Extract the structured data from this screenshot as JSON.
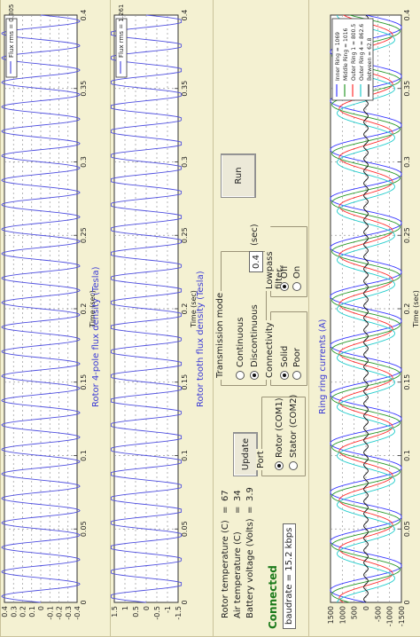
{
  "charts": {
    "rotor4pole": {
      "title": "Rotor 4-pole flux density (Tesla)",
      "legend": "Flux rms = 0.305",
      "xticks": [
        "0.4",
        "0.3",
        "0.2",
        "0.1",
        "0",
        "-0.1",
        "-0.2",
        "-0.3",
        "-0.4"
      ]
    },
    "rotortooth": {
      "title": "Rotor tooth flux density (Tesla)",
      "legend": "Flux rms = 1.261",
      "xticks": [
        "1.5",
        "1",
        "0.5",
        "0",
        "-0.5",
        "-1",
        "-1.5"
      ]
    },
    "ring": {
      "title": "Ring ring currents (A)",
      "xticks": [
        "1500",
        "1000",
        "500",
        "0",
        "-500",
        "-1000",
        "-1500"
      ]
    },
    "time_axis": {
      "label": "Time (sec)",
      "ticks": [
        "0",
        "0.05",
        "0.1",
        "0.15",
        "0.2",
        "0.25",
        "0.3",
        "0.35",
        "0.4"
      ]
    }
  },
  "chart_data": [
    {
      "type": "line",
      "title": "Rotor 4-pole flux density (Tesla)",
      "xlabel": "Time (sec)",
      "xlim": [
        0,
        0.4
      ],
      "ylim": [
        -0.4,
        0.4
      ],
      "series": [
        {
          "name": "Flux rms = 0.305",
          "color": "#5050e0",
          "amplitude": 0.43,
          "frequency_hz": 60
        }
      ]
    },
    {
      "type": "line",
      "title": "Rotor tooth flux density (Tesla)",
      "xlabel": "Time (sec)",
      "xlim": [
        0,
        0.4
      ],
      "ylim": [
        -1.5,
        1.5
      ],
      "series": [
        {
          "name": "Flux rms = 1.261",
          "color": "#5050e0",
          "amplitude": 1.78,
          "frequency_hz": 60
        }
      ]
    },
    {
      "type": "line",
      "title": "Ring ring currents (A)",
      "xlabel": "Time (sec)",
      "xlim": [
        0,
        0.4
      ],
      "ylim": [
        -1500,
        1500
      ],
      "series": [
        {
          "name": "Inner Ring = 1069",
          "color": "#3a3aff",
          "amplitude": 1510,
          "frequency_hz": 30,
          "phase": 0
        },
        {
          "name": "Middle Ring = 1016",
          "color": "#2a9a2a",
          "amplitude": 1440,
          "frequency_hz": 30,
          "phase": 0.5
        },
        {
          "name": "Outer Ring 1 = 800.5",
          "color": "#ff3030",
          "amplitude": 1130,
          "frequency_hz": 30,
          "phase": 1.0
        },
        {
          "name": "Outer Ring 4 = 862.6",
          "color": "#22cccc",
          "amplitude": 1220,
          "frequency_hz": 30,
          "phase": 1.6
        },
        {
          "name": "Between = 62.8",
          "color": "#111111",
          "amplitude": 90,
          "frequency_hz": 120,
          "phase": 0
        }
      ]
    }
  ],
  "readouts": {
    "rotor_temp_label": "Rotor temperature (C)",
    "rotor_temp_value": "67",
    "air_temp_label": "Air temperature (C)",
    "air_temp_value": "34",
    "battery_label": "Battery voltage (Volts)",
    "battery_value": "3.9",
    "eq": "="
  },
  "transmission": {
    "title": "Transmission mode",
    "continuous": "Continuous",
    "discontinuous": "Discontinuous",
    "interval": "0.4",
    "interval_unit": "(sec)",
    "selected": "discontinuous"
  },
  "port": {
    "title": "Port",
    "rotor": "Rotor (COM1)",
    "stator": "Stator (COM2)",
    "selected": "rotor"
  },
  "connectivity": {
    "title": "Connectivity",
    "solid": "Solid",
    "poor": "Poor",
    "selected": "solid"
  },
  "lowpass": {
    "title": "Lowpass filter",
    "off": "Off",
    "on": "On",
    "selected": "off"
  },
  "buttons": {
    "update": "Update",
    "run": "Run"
  },
  "status": {
    "connected": "Connected",
    "baudrate": "baudrate = 15.2 kbps"
  }
}
